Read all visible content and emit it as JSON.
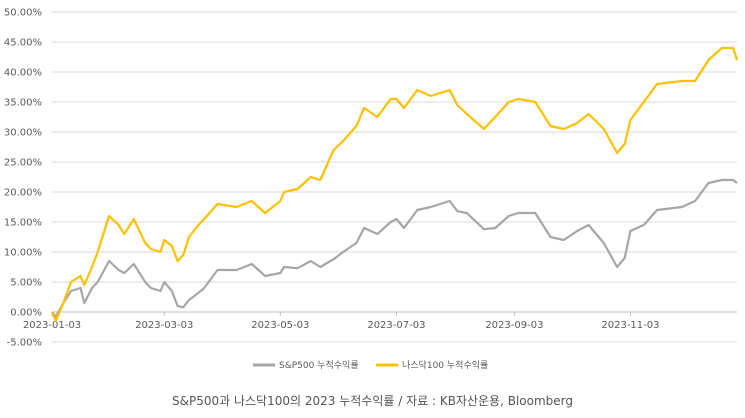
{
  "caption": "S&P500과 나스닥100의 2023 누적수익률 / 자료 : KB자산운용, Bloomberg",
  "chart_data": {
    "type": "line",
    "title": "",
    "xlabel": "",
    "ylabel": "",
    "x_ticks": [
      "2023-01-03",
      "2023-03-03",
      "2023-05-03",
      "2023-07-03",
      "2023-09-03",
      "2023-11-03"
    ],
    "y_ticks": [
      "-5.00%",
      "0.00%",
      "5.00%",
      "10.00%",
      "15.00%",
      "20.00%",
      "25.00%",
      "30.00%",
      "35.00%",
      "40.00%",
      "45.00%",
      "50.00%"
    ],
    "ylim": [
      -5,
      50
    ],
    "xlim": [
      "2023-01-03",
      "2023-12-29"
    ],
    "grid": "horizontal",
    "legend_position": "bottom",
    "series": [
      {
        "name": "S&P500 누적수익률",
        "color": "#a6a6a6",
        "points": [
          [
            "2023-01-03",
            0
          ],
          [
            "2023-01-05",
            -0.8
          ],
          [
            "2023-01-09",
            1.5
          ],
          [
            "2023-01-13",
            3.5
          ],
          [
            "2023-01-18",
            4.0
          ],
          [
            "2023-01-20",
            1.5
          ],
          [
            "2023-01-24",
            4.0
          ],
          [
            "2023-01-27",
            5.0
          ],
          [
            "2023-02-02",
            8.5
          ],
          [
            "2023-02-07",
            7.0
          ],
          [
            "2023-02-10",
            6.5
          ],
          [
            "2023-02-15",
            8.0
          ],
          [
            "2023-02-21",
            5.0
          ],
          [
            "2023-02-24",
            4.0
          ],
          [
            "2023-03-01",
            3.5
          ],
          [
            "2023-03-03",
            5.0
          ],
          [
            "2023-03-07",
            3.5
          ],
          [
            "2023-03-10",
            1.0
          ],
          [
            "2023-03-13",
            0.8
          ],
          [
            "2023-03-16",
            2.0
          ],
          [
            "2023-03-21",
            3.2
          ],
          [
            "2023-03-24",
            4.0
          ],
          [
            "2023-03-31",
            7.0
          ],
          [
            "2023-04-10",
            7.0
          ],
          [
            "2023-04-18",
            8.0
          ],
          [
            "2023-04-25",
            6.0
          ],
          [
            "2023-05-03",
            6.5
          ],
          [
            "2023-05-05",
            7.5
          ],
          [
            "2023-05-12",
            7.3
          ],
          [
            "2023-05-19",
            8.5
          ],
          [
            "2023-05-24",
            7.5
          ],
          [
            "2023-05-31",
            8.8
          ],
          [
            "2023-06-05",
            10.0
          ],
          [
            "2023-06-12",
            11.5
          ],
          [
            "2023-06-16",
            14.0
          ],
          [
            "2023-06-23",
            13.0
          ],
          [
            "2023-06-30",
            15.0
          ],
          [
            "2023-07-03",
            15.5
          ],
          [
            "2023-07-07",
            14.0
          ],
          [
            "2023-07-14",
            17.0
          ],
          [
            "2023-07-21",
            17.5
          ],
          [
            "2023-07-31",
            18.5
          ],
          [
            "2023-08-04",
            16.8
          ],
          [
            "2023-08-09",
            16.5
          ],
          [
            "2023-08-18",
            13.8
          ],
          [
            "2023-08-24",
            14.0
          ],
          [
            "2023-08-31",
            16.0
          ],
          [
            "2023-09-05",
            16.5
          ],
          [
            "2023-09-14",
            16.5
          ],
          [
            "2023-09-22",
            12.5
          ],
          [
            "2023-09-29",
            12.0
          ],
          [
            "2023-10-06",
            13.5
          ],
          [
            "2023-10-12",
            14.5
          ],
          [
            "2023-10-20",
            11.5
          ],
          [
            "2023-10-27",
            7.5
          ],
          [
            "2023-10-31",
            9.0
          ],
          [
            "2023-11-03",
            13.5
          ],
          [
            "2023-11-10",
            14.5
          ],
          [
            "2023-11-17",
            17.0
          ],
          [
            "2023-11-30",
            17.5
          ],
          [
            "2023-12-07",
            18.5
          ],
          [
            "2023-12-14",
            21.5
          ],
          [
            "2023-12-21",
            22.0
          ],
          [
            "2023-12-27",
            22.0
          ],
          [
            "2023-12-29",
            21.5
          ]
        ]
      },
      {
        "name": "나스닥100 누적수익률",
        "color": "#ffc000",
        "points": [
          [
            "2023-01-03",
            0
          ],
          [
            "2023-01-05",
            -1.5
          ],
          [
            "2023-01-09",
            1.5
          ],
          [
            "2023-01-13",
            5.0
          ],
          [
            "2023-01-18",
            6.0
          ],
          [
            "2023-01-20",
            4.5
          ],
          [
            "2023-01-24",
            7.5
          ],
          [
            "2023-01-27",
            10.0
          ],
          [
            "2023-02-02",
            16.0
          ],
          [
            "2023-02-07",
            14.5
          ],
          [
            "2023-02-10",
            13.0
          ],
          [
            "2023-02-15",
            15.5
          ],
          [
            "2023-02-21",
            11.5
          ],
          [
            "2023-02-24",
            10.5
          ],
          [
            "2023-03-01",
            10.0
          ],
          [
            "2023-03-03",
            12.0
          ],
          [
            "2023-03-07",
            11.0
          ],
          [
            "2023-03-10",
            8.5
          ],
          [
            "2023-03-13",
            9.5
          ],
          [
            "2023-03-16",
            12.5
          ],
          [
            "2023-03-21",
            14.5
          ],
          [
            "2023-03-24",
            15.5
          ],
          [
            "2023-03-31",
            18.0
          ],
          [
            "2023-04-10",
            17.5
          ],
          [
            "2023-04-18",
            18.5
          ],
          [
            "2023-04-25",
            16.5
          ],
          [
            "2023-05-03",
            18.5
          ],
          [
            "2023-05-05",
            20.0
          ],
          [
            "2023-05-12",
            20.5
          ],
          [
            "2023-05-19",
            22.5
          ],
          [
            "2023-05-24",
            22.0
          ],
          [
            "2023-05-31",
            27.0
          ],
          [
            "2023-06-05",
            28.5
          ],
          [
            "2023-06-12",
            31.0
          ],
          [
            "2023-06-16",
            34.0
          ],
          [
            "2023-06-23",
            32.5
          ],
          [
            "2023-06-30",
            35.5
          ],
          [
            "2023-07-03",
            35.5
          ],
          [
            "2023-07-07",
            34.0
          ],
          [
            "2023-07-14",
            37.0
          ],
          [
            "2023-07-21",
            36.0
          ],
          [
            "2023-07-31",
            37.0
          ],
          [
            "2023-08-04",
            34.5
          ],
          [
            "2023-08-09",
            33.0
          ],
          [
            "2023-08-18",
            30.5
          ],
          [
            "2023-08-24",
            32.5
          ],
          [
            "2023-08-31",
            35.0
          ],
          [
            "2023-09-05",
            35.5
          ],
          [
            "2023-09-14",
            35.0
          ],
          [
            "2023-09-22",
            31.0
          ],
          [
            "2023-09-29",
            30.5
          ],
          [
            "2023-10-06",
            31.5
          ],
          [
            "2023-10-12",
            33.0
          ],
          [
            "2023-10-20",
            30.5
          ],
          [
            "2023-10-27",
            26.5
          ],
          [
            "2023-10-31",
            28.0
          ],
          [
            "2023-11-03",
            32.0
          ],
          [
            "2023-11-10",
            35.0
          ],
          [
            "2023-11-17",
            38.0
          ],
          [
            "2023-11-30",
            38.5
          ],
          [
            "2023-12-07",
            38.5
          ],
          [
            "2023-12-14",
            42.0
          ],
          [
            "2023-12-21",
            44.0
          ],
          [
            "2023-12-27",
            44.0
          ],
          [
            "2023-12-29",
            42.0
          ]
        ]
      }
    ]
  }
}
